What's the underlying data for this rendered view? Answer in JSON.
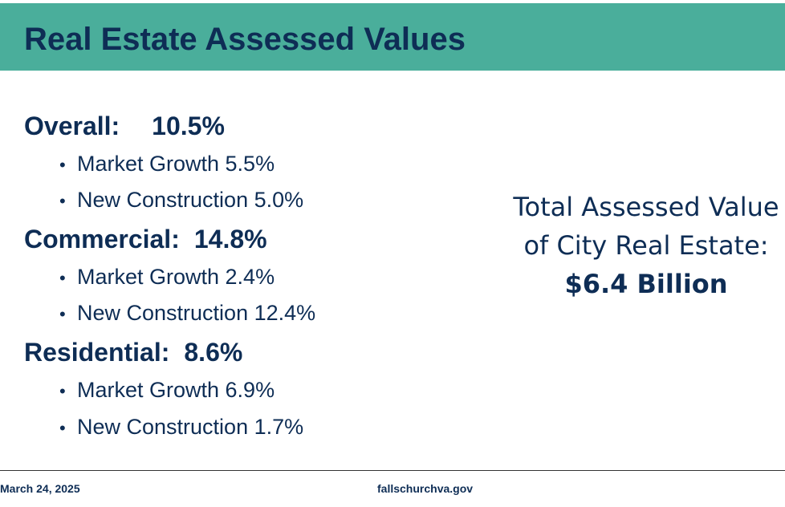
{
  "title": "Real Estate Assessed Values",
  "categories": [
    {
      "label": "Overall:",
      "percent": "10.5%",
      "items": [
        {
          "label": "Market Growth 5.5%"
        },
        {
          "label": "New Construction 5.0%"
        }
      ]
    },
    {
      "label": "Commercial:",
      "percent": "14.8%",
      "items": [
        {
          "label": "Market Growth 2.4%"
        },
        {
          "label": "New Construction 12.4%"
        }
      ]
    },
    {
      "label": "Residential:",
      "percent": "8.6%",
      "items": [
        {
          "label": "Market Growth 6.9%"
        },
        {
          "label": "New Construction 1.7%"
        }
      ]
    }
  ],
  "summary": {
    "line1": "Total Assessed Value",
    "line2": "of City Real Estate:",
    "amount": "$6.4 Billion"
  },
  "footer": {
    "date": "March 24, 2025",
    "website": "fallschurchva.gov"
  },
  "colors": {
    "title_bar": "#4aae9b",
    "text": "#0e2d55"
  }
}
